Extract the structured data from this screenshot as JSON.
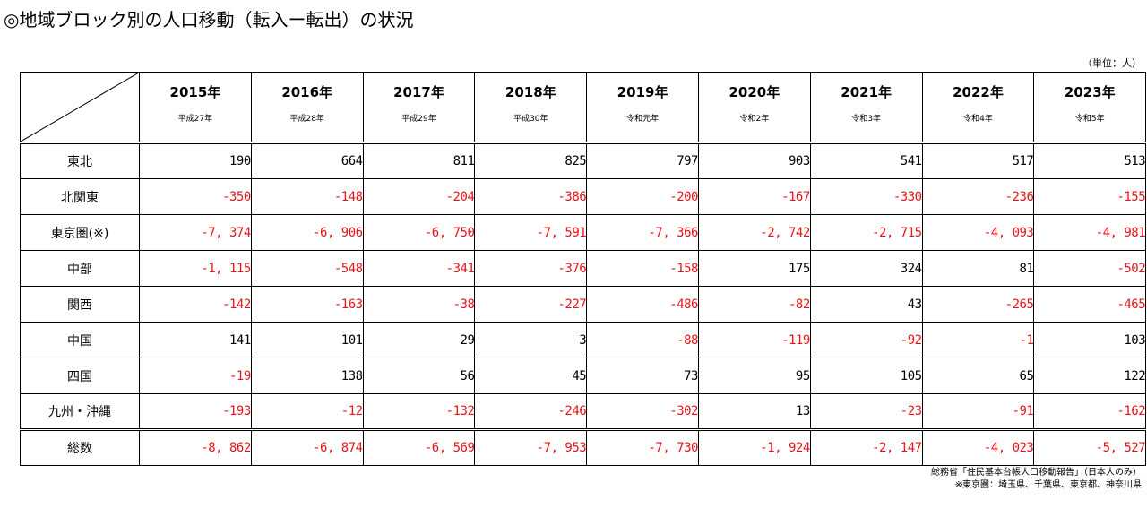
{
  "title": "◎地域ブロック別の人口移動（転入ー転出）の状況",
  "unit_note": "（単位：人）",
  "years": [
    {
      "year": "2015年",
      "era": "平成27年"
    },
    {
      "year": "2016年",
      "era": "平成28年"
    },
    {
      "year": "2017年",
      "era": "平成29年"
    },
    {
      "year": "2018年",
      "era": "平成30年"
    },
    {
      "year": "2019年",
      "era": "令和元年"
    },
    {
      "year": "2020年",
      "era": "令和2年"
    },
    {
      "year": "2021年",
      "era": "令和3年"
    },
    {
      "year": "2022年",
      "era": "令和4年"
    },
    {
      "year": "2023年",
      "era": "令和5年"
    }
  ],
  "rows": [
    {
      "region": "東北",
      "values": [
        "190",
        "664",
        "811",
        "825",
        "797",
        "903",
        "541",
        "517",
        "513"
      ]
    },
    {
      "region": "北関東",
      "values": [
        "-350",
        "-148",
        "-204",
        "-386",
        "-200",
        "-167",
        "-330",
        "-236",
        "-155"
      ]
    },
    {
      "region": "東京圏(※)",
      "values": [
        "-7, 374",
        "-6, 906",
        "-6, 750",
        "-7, 591",
        "-7, 366",
        "-2, 742",
        "-2, 715",
        "-4, 093",
        "-4, 981"
      ]
    },
    {
      "region": "中部",
      "values": [
        "-1, 115",
        "-548",
        "-341",
        "-376",
        "-158",
        "175",
        "324",
        "81",
        "-502"
      ]
    },
    {
      "region": "関西",
      "values": [
        "-142",
        "-163",
        "-38",
        "-227",
        "-486",
        "-82",
        "43",
        "-265",
        "-465"
      ]
    },
    {
      "region": "中国",
      "values": [
        "141",
        "101",
        "29",
        "3",
        "-88",
        "-119",
        "-92",
        "-1",
        "103"
      ]
    },
    {
      "region": "四国",
      "values": [
        "-19",
        "138",
        "56",
        "45",
        "73",
        "95",
        "105",
        "65",
        "122"
      ]
    },
    {
      "region": "九州・沖縄",
      "values": [
        "-193",
        "-12",
        "-132",
        "-246",
        "-302",
        "13",
        "-23",
        "-91",
        "-162"
      ]
    }
  ],
  "total": {
    "region": "総数",
    "values": [
      "-8, 862",
      "-6, 874",
      "-6, 569",
      "-7, 953",
      "-7, 730",
      "-1, 924",
      "-2, 147",
      "-4, 023",
      "-5, 527"
    ]
  },
  "source_note": "総務省「住民基本台帳人口移動報告」（日本人のみ）",
  "area_note": "※東京圏：埼玉県、千葉県、東京都、神奈川県",
  "colors": {
    "negative": "#e8141a",
    "positive": "#000000",
    "border": "#000000"
  }
}
